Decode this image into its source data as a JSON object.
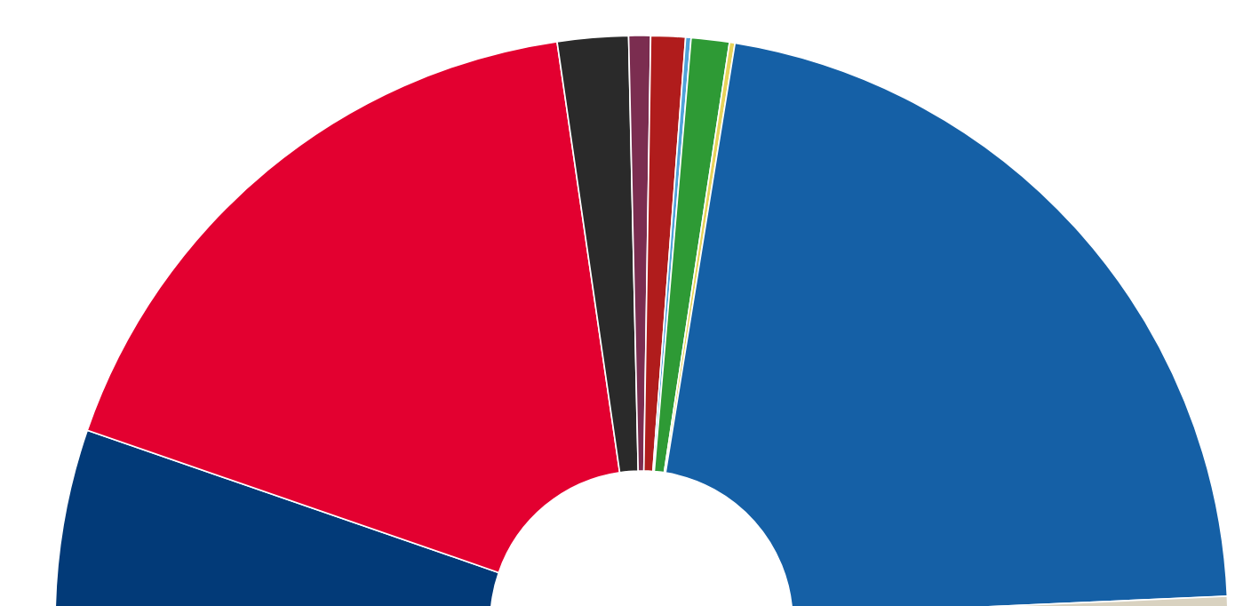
{
  "chart_data": {
    "type": "donut",
    "categories": [
      null,
      null,
      null,
      null,
      null,
      null,
      null,
      null,
      null,
      null
    ],
    "values": [
      10.6,
      34.8,
      3.9,
      1.2,
      1.9,
      0.3,
      2.1,
      0.3,
      43.5,
      1.4
    ],
    "colors": [
      "#023a78",
      "#e30030",
      "#2a2a2a",
      "#7b2d50",
      "#b01c1c",
      "#4fa3d9",
      "#2e9a35",
      "#e8d45a",
      "#1560a6",
      "#d9d2c0"
    ]
  }
}
